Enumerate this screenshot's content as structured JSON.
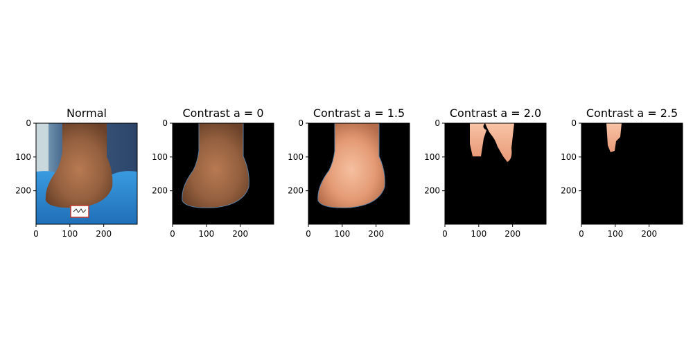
{
  "chart_data": {
    "type": "image-grid",
    "panels": [
      {
        "title": "Normal",
        "content": "photo-full",
        "xticks": [
          0,
          100,
          200
        ],
        "yticks": [
          0,
          100,
          200
        ],
        "xlim": [
          0,
          299
        ],
        "ylim": [
          299,
          0
        ]
      },
      {
        "title": "Contrast a = 0",
        "content": "segmented-skin-natural",
        "xticks": [
          0,
          100,
          200
        ],
        "yticks": [
          0,
          100,
          200
        ],
        "xlim": [
          0,
          299
        ],
        "ylim": [
          299,
          0
        ]
      },
      {
        "title": "Contrast a = 1.5",
        "content": "segmented-skin-bright",
        "xticks": [
          0,
          100,
          200
        ],
        "yticks": [
          0,
          100,
          200
        ],
        "xlim": [
          0,
          299
        ],
        "ylim": [
          299,
          0
        ]
      },
      {
        "title": "Contrast a = 2.0",
        "content": "segmented-skin-partial",
        "xticks": [
          0,
          100,
          200
        ],
        "yticks": [
          0,
          100,
          200
        ],
        "xlim": [
          0,
          299
        ],
        "ylim": [
          299,
          0
        ]
      },
      {
        "title": "Contrast a = 2.5",
        "content": "segmented-skin-minimal",
        "xticks": [
          0,
          100,
          200
        ],
        "yticks": [
          0,
          100,
          200
        ],
        "xlim": [
          0,
          299
        ],
        "ylim": [
          299,
          0
        ]
      }
    ]
  },
  "colors": {
    "background_mask": "#000000",
    "shirt": "#2f8fd6",
    "skin_natural": "#a0653f",
    "skin_bright": "#e8a07a",
    "skin_partial": "#f0b090"
  }
}
